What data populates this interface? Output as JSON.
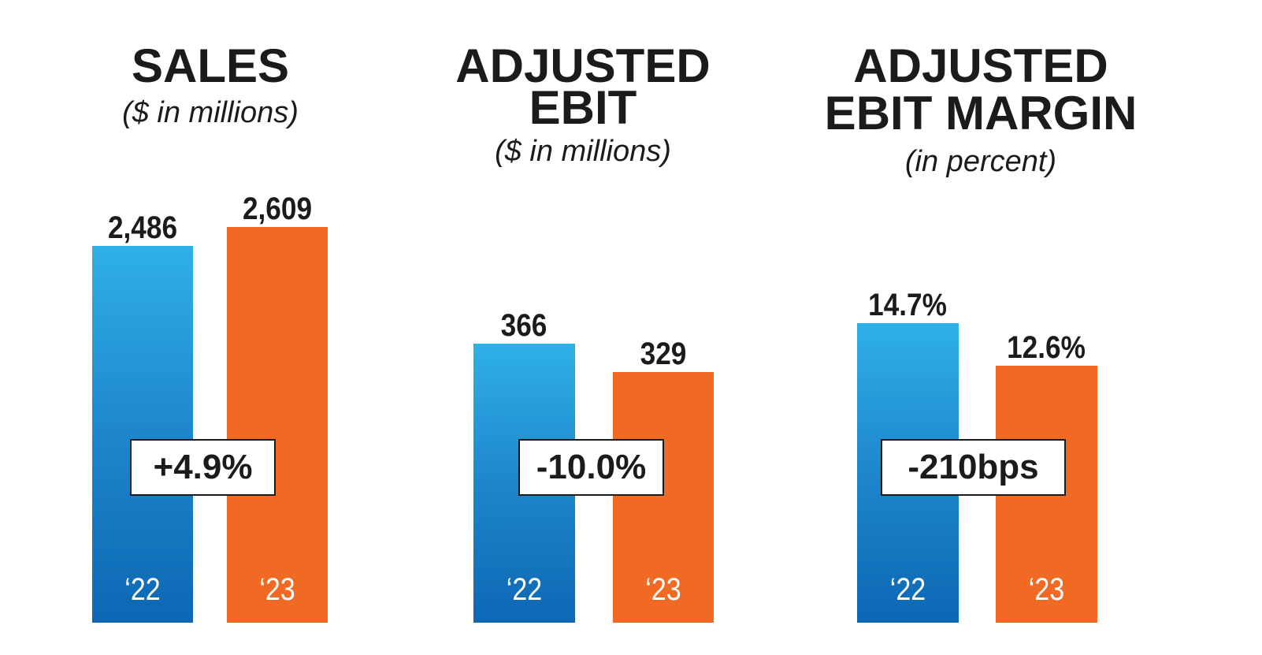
{
  "chart_data": [
    {
      "type": "bar",
      "title": [
        "SALES"
      ],
      "subtitle": "($ in millions)",
      "categories": [
        "‘22",
        "‘23"
      ],
      "values": [
        2486,
        2609
      ],
      "value_labels": [
        "2,486",
        "2,609"
      ],
      "change": "+4.9%",
      "colors": [
        "#1e86cc",
        "#f06a24"
      ],
      "ylim": [
        0,
        2609
      ]
    },
    {
      "type": "bar",
      "title": [
        "ADJUSTED",
        "EBIT"
      ],
      "subtitle": "($ in millions)",
      "categories": [
        "‘22",
        "‘23"
      ],
      "values": [
        366,
        329
      ],
      "value_labels": [
        "366",
        "329"
      ],
      "change": "-10.0%",
      "colors": [
        "#1e86cc",
        "#f06a24"
      ],
      "ylim": [
        0,
        366
      ]
    },
    {
      "type": "bar",
      "title": [
        "ADJUSTED",
        "EBIT MARGIN"
      ],
      "subtitle": "(in percent)",
      "categories": [
        "‘22",
        "‘23"
      ],
      "values": [
        14.7,
        12.6
      ],
      "value_labels": [
        "14.7%",
        "12.6%"
      ],
      "change": "-210bps",
      "colors": [
        "#1e86cc",
        "#f06a24"
      ],
      "ylim": [
        0,
        14.7
      ]
    }
  ]
}
